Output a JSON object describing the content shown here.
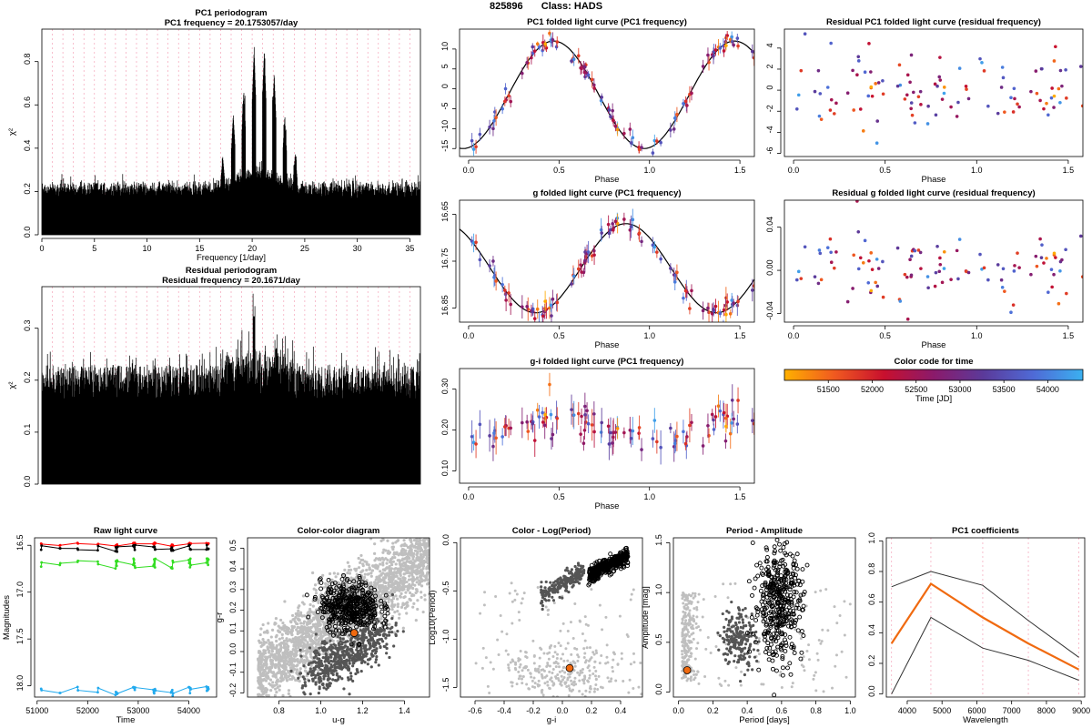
{
  "header": {
    "object_id": "825896",
    "class_label": "Class: HADS"
  },
  "colors": {
    "scale": [
      "#ffb000",
      "#f05a20",
      "#c8102e",
      "#8b1a6b",
      "#5b3a9a",
      "#4f6ad6",
      "#3bb0f0"
    ],
    "lc_model": "#000000",
    "pc1_coef": "#f06a10",
    "cc_bg": "#bfbfbf",
    "cc_dark": "#555555",
    "cc_ring": "#000000",
    "cc_target": "#f06a10",
    "raw_g": "#ff0000",
    "raw_r": "#000000",
    "raw_gc": "#33dd22",
    "raw_b": "#22aaee"
  },
  "charts": [
    {
      "id": "pc1_periodogram",
      "type": "line",
      "title": "PC1 periodogram",
      "subtitle": "PC1 frequency = 20.1753057/day",
      "xlabel": "Frequency [1/day]",
      "ylabel": "χ²",
      "xlim": [
        0,
        36
      ],
      "ylim": [
        0,
        0.95
      ],
      "xticks": [
        0,
        5,
        10,
        15,
        20,
        25,
        30,
        35
      ],
      "yticks": [
        0.0,
        0.2,
        0.4,
        0.6,
        0.8
      ],
      "tick_labels_x": [
        "0",
        "5",
        "10",
        "15",
        "20",
        "25",
        "30",
        "35"
      ],
      "tick_labels_y": [
        "0.0",
        "0.2",
        "0.4",
        "0.6",
        "0.8"
      ],
      "peaks": [
        {
          "x": 19.2,
          "y": 0.72
        },
        {
          "x": 20.18,
          "y": 0.93
        },
        {
          "x": 21.15,
          "y": 0.93
        },
        {
          "x": 22.1,
          "y": 0.82
        },
        {
          "x": 18.2,
          "y": 0.62
        },
        {
          "x": 23.1,
          "y": 0.61
        },
        {
          "x": 17.2,
          "y": 0.41
        },
        {
          "x": 24.1,
          "y": 0.43
        }
      ],
      "noise_level": 0.25
    },
    {
      "id": "residual_periodogram",
      "type": "line",
      "title": "Residual periodogram",
      "subtitle": "Residual frequency = 20.1671/day",
      "xlabel": "Frequency [1/day]",
      "ylabel": "χ²",
      "xlim": [
        0,
        36
      ],
      "ylim": [
        0,
        0.38
      ],
      "tick_labels_x": [
        "0",
        "5",
        "10",
        "15",
        "20",
        "25",
        "30",
        "35"
      ],
      "tick_labels_y": [
        "0.0",
        "0.1",
        "0.2",
        "0.3"
      ],
      "yticks": [
        0.0,
        0.1,
        0.2,
        0.3
      ],
      "noise_level": 0.27
    },
    {
      "id": "pc1_folded",
      "type": "scatter",
      "title": "PC1 folded light curve (PC1 frequency)",
      "xlabel": "Phase",
      "xlim": [
        -0.05,
        1.58
      ],
      "ylim": [
        -17,
        15
      ],
      "tick_labels_x": [
        "0.0",
        "0.5",
        "1.0",
        "1.5"
      ],
      "xticks": [
        0,
        0.5,
        1.0,
        1.5
      ],
      "tick_labels_y": [
        "-15",
        "-10",
        "-5",
        "0",
        "5",
        "10"
      ],
      "yticks": [
        -15,
        -10,
        -5,
        0,
        5,
        10
      ],
      "model": {
        "amplitude": 13.5,
        "offset": -1.5,
        "phase_peak": 0.47
      }
    },
    {
      "id": "resid_pc1",
      "type": "scatter",
      "title": "Residual PC1 folded light curve (residual frequency)",
      "xlabel": "Phase",
      "xlim": [
        -0.05,
        1.58
      ],
      "ylim": [
        -6.3,
        5.8
      ],
      "tick_labels_x": [
        "0.0",
        "0.5",
        "1.0",
        "1.5"
      ],
      "xticks": [
        0,
        0.5,
        1.0,
        1.5
      ],
      "tick_labels_y": [
        "-6",
        "-4",
        "-2",
        "0",
        "2",
        "4"
      ],
      "yticks": [
        -6,
        -4,
        -2,
        0,
        2,
        4
      ]
    },
    {
      "id": "g_folded",
      "type": "scatter",
      "title": "g folded light curve (PC1 frequency)",
      "xlabel": "Phase",
      "xlim": [
        -0.05,
        1.58
      ],
      "ylim": [
        16.88,
        16.62
      ],
      "tick_labels_x": [
        "0.0",
        "0.5",
        "1.0",
        "1.5"
      ],
      "xticks": [
        0,
        0.5,
        1.0,
        1.5
      ],
      "tick_labels_y": [
        "16.65",
        "16.75",
        "16.85"
      ],
      "yticks": [
        16.65,
        16.75,
        16.85
      ],
      "model": {
        "mean": 16.765,
        "amplitude": 0.095,
        "phase_peak": 0.87
      }
    },
    {
      "id": "resid_g",
      "type": "scatter",
      "title": "Residual g folded light curve (residual frequency)",
      "xlabel": "Phase",
      "xlim": [
        -0.05,
        1.58
      ],
      "ylim": [
        -0.048,
        0.065
      ],
      "tick_labels_x": [
        "0.0",
        "0.5",
        "1.0",
        "1.5"
      ],
      "xticks": [
        0,
        0.5,
        1.0,
        1.5
      ],
      "tick_labels_y": [
        "-0.04",
        "0.00",
        "0.04"
      ],
      "yticks": [
        -0.04,
        0.0,
        0.04
      ]
    },
    {
      "id": "gi_folded",
      "type": "scatter",
      "title": "g-i folded light curve (PC1 frequency)",
      "xlabel": "Phase",
      "xlim": [
        -0.05,
        1.58
      ],
      "ylim": [
        0.07,
        0.35
      ],
      "tick_labels_x": [
        "0.0",
        "0.5",
        "1.0",
        "1.5"
      ],
      "xticks": [
        0,
        0.5,
        1.0,
        1.5
      ],
      "tick_labels_y": [
        "0.10",
        "0.20",
        "0.30"
      ],
      "yticks": [
        0.1,
        0.2,
        0.3
      ]
    },
    {
      "id": "colorbar",
      "type": "heatmap",
      "title": "Color code for time",
      "xlabel": "Time [JD]",
      "xlim": [
        51000,
        54400
      ],
      "tick_labels_x": [
        "51500",
        "52000",
        "52500",
        "53000",
        "53500",
        "54000"
      ],
      "xticks": [
        51500,
        52000,
        52500,
        53000,
        53500,
        54000
      ]
    },
    {
      "id": "raw_lc",
      "type": "line",
      "title": "Raw light curve",
      "xlabel": "Time",
      "ylabel": "Magnitudes",
      "xlim": [
        50950,
        54550
      ],
      "ylim": [
        18.12,
        16.42
      ],
      "tick_labels_x": [
        "51000",
        "52000",
        "53000",
        "54000"
      ],
      "xticks": [
        51000,
        52000,
        53000,
        54000
      ],
      "tick_labels_y": [
        "16.5",
        "17.0",
        "17.5",
        "18.0"
      ],
      "yticks": [
        16.5,
        17.0,
        17.5,
        18.0
      ],
      "series_levels": [
        16.48,
        16.52,
        16.68,
        18.04
      ],
      "epochs": [
        51080,
        51450,
        51800,
        52200,
        52550,
        52900,
        53300,
        53650,
        54000,
        54350
      ]
    },
    {
      "id": "color_color",
      "type": "scatter",
      "title": "Color-color diagram",
      "xlabel": "u-g",
      "ylabel": "g-r",
      "xlim": [
        0.65,
        1.52
      ],
      "ylim": [
        -0.22,
        0.55
      ],
      "tick_labels_x": [
        "0.8",
        "1.0",
        "1.2",
        "1.4"
      ],
      "xticks": [
        0.8,
        1.0,
        1.2,
        1.4
      ],
      "tick_labels_y": [
        "-0.2",
        "-0.1",
        "0.0",
        "0.1",
        "0.2",
        "0.3",
        "0.4",
        "0.5"
      ],
      "yticks": [
        -0.2,
        -0.1,
        0.0,
        0.1,
        0.2,
        0.3,
        0.4,
        0.5
      ],
      "target": {
        "x": 1.16,
        "y": 0.09
      }
    },
    {
      "id": "color_logp",
      "type": "scatter",
      "title": "Color - Log(Period)",
      "xlabel": "g-i",
      "ylabel": "Log10(Period)",
      "xlim": [
        -0.7,
        0.55
      ],
      "ylim": [
        -1.6,
        0.05
      ],
      "tick_labels_x": [
        "-0.6",
        "-0.4",
        "-0.2",
        "0.0",
        "0.2",
        "0.4"
      ],
      "xticks": [
        -0.6,
        -0.4,
        -0.2,
        0.0,
        0.2,
        0.4
      ],
      "tick_labels_y": [
        "-1.5",
        "-1.0",
        "-0.5",
        "0.0"
      ],
      "yticks": [
        -1.5,
        -1.0,
        -0.5,
        0.0
      ],
      "target": {
        "x": 0.05,
        "y": -1.3
      }
    },
    {
      "id": "period_amp",
      "type": "scatter",
      "title": "Period - Amplitude",
      "xlabel": "Period [days]",
      "ylabel": "Amplitude [mag]",
      "xlim": [
        -0.03,
        1.03
      ],
      "ylim": [
        -0.05,
        1.55
      ],
      "tick_labels_x": [
        "0.0",
        "0.2",
        "0.4",
        "0.6",
        "0.8",
        "1.0"
      ],
      "xticks": [
        0.0,
        0.2,
        0.4,
        0.6,
        0.8,
        1.0
      ],
      "tick_labels_y": [
        "0.0",
        "0.5",
        "1.0",
        "1.5"
      ],
      "yticks": [
        0.0,
        0.5,
        1.0,
        1.5
      ],
      "target": {
        "x": 0.05,
        "y": 0.22
      }
    },
    {
      "id": "pc1_coef",
      "type": "line",
      "title": "PC1 coefficients",
      "xlabel": "Wavelength",
      "xlim": [
        3400,
        9100
      ],
      "ylim": [
        -0.02,
        1.02
      ],
      "tick_labels_x": [
        "4000",
        "5000",
        "6000",
        "7000",
        "8000",
        "9000"
      ],
      "xticks": [
        4000,
        5000,
        6000,
        7000,
        8000,
        9000
      ],
      "tick_labels_y": [
        "0.0",
        "0.2",
        "0.4",
        "0.6",
        "0.8",
        "1.0"
      ],
      "yticks": [
        0.0,
        0.2,
        0.4,
        0.6,
        0.8,
        1.0
      ],
      "wavelengths": [
        3550,
        4680,
        6170,
        7480,
        8930
      ],
      "series": [
        {
          "values": [
            0.33,
            0.72,
            0.5,
            0.33,
            0.16
          ]
        },
        {
          "values": [
            0.7,
            0.8,
            0.71,
            0.48,
            0.24
          ]
        },
        {
          "values": [
            0.0,
            0.5,
            0.3,
            0.22,
            0.09
          ]
        }
      ]
    }
  ]
}
